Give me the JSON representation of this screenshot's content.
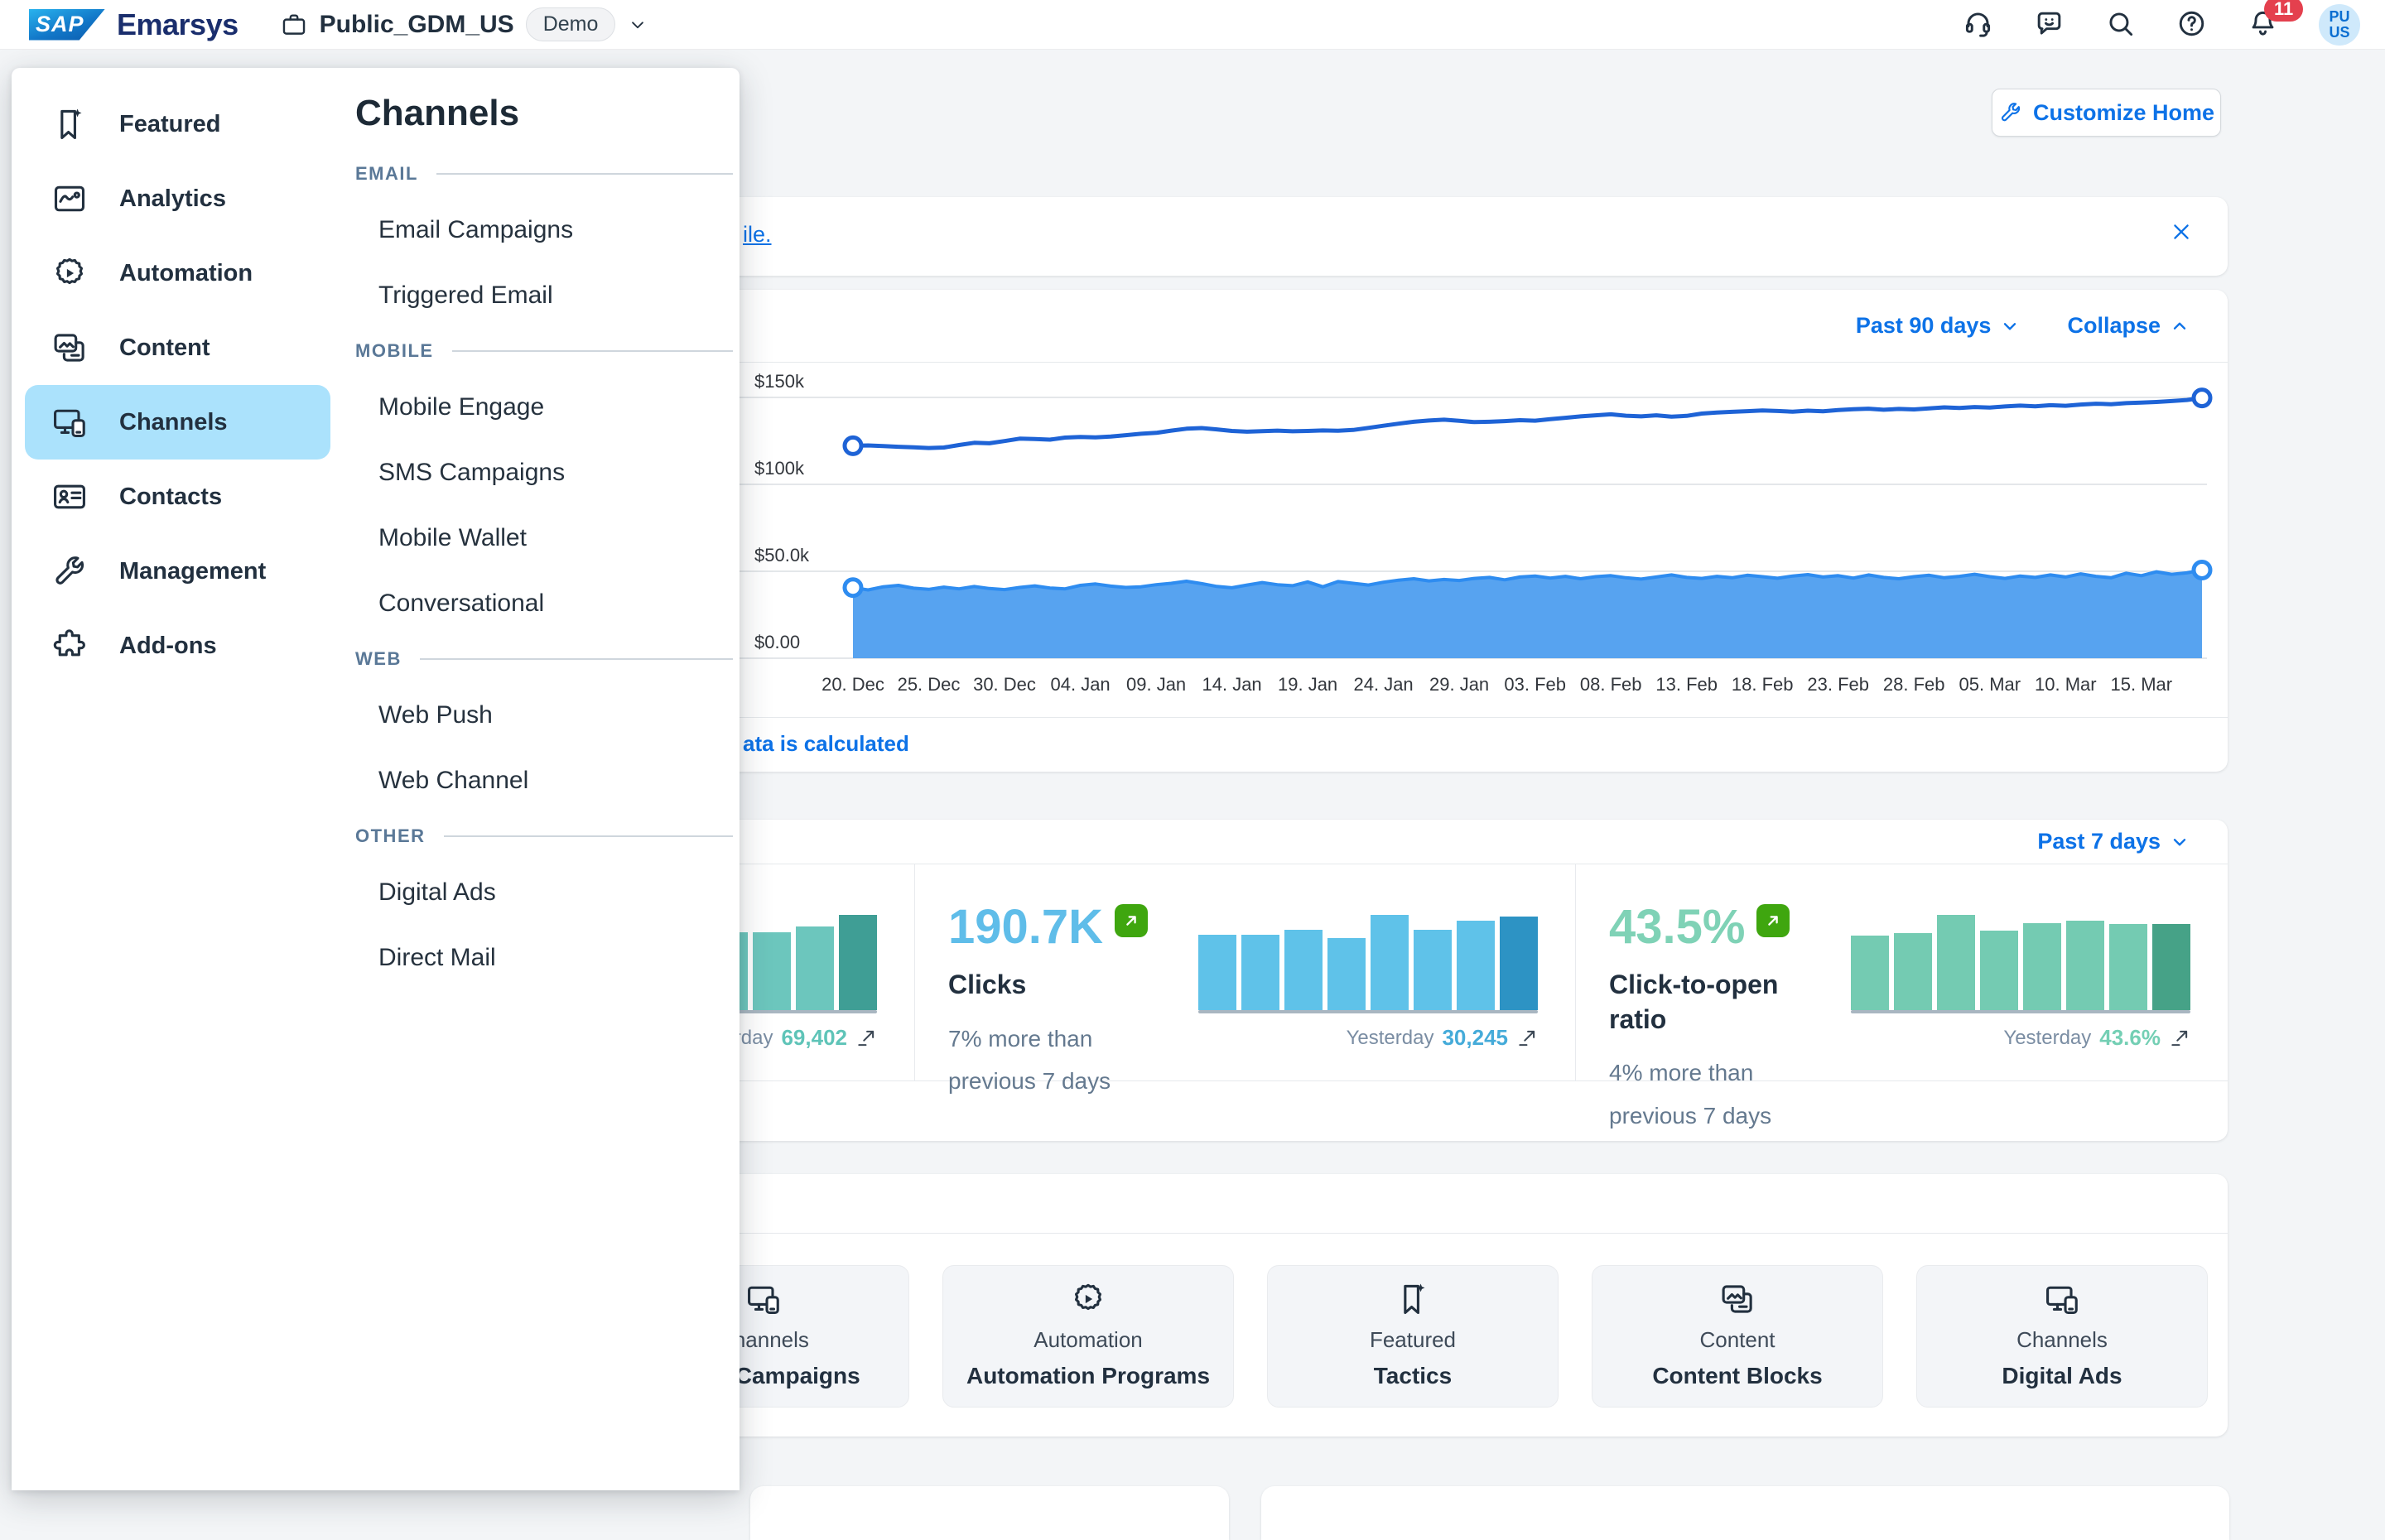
{
  "colors": {
    "accent_blue": "#0d72e7",
    "nav_highlight": "#abe2fc",
    "line_series": "#1e63d6",
    "area_series": "#57a3f0",
    "badge_green": "#3fa60f",
    "alert_red": "#e4404e"
  },
  "topbar": {
    "brand_sap": "SAP",
    "brand_product": "Emarsys",
    "account_name": "Public_GDM_US",
    "account_badge": "Demo",
    "notification_count": "11",
    "avatar_line1": "PU",
    "avatar_line2": "US"
  },
  "sidebar": {
    "items": [
      {
        "label": "Featured",
        "icon": "featured",
        "active": false
      },
      {
        "label": "Analytics",
        "icon": "analytics",
        "active": false
      },
      {
        "label": "Automation",
        "icon": "automation",
        "active": false
      },
      {
        "label": "Content",
        "icon": "content",
        "active": false
      },
      {
        "label": "Channels",
        "icon": "channels",
        "active": true
      },
      {
        "label": "Contacts",
        "icon": "contacts",
        "active": false
      },
      {
        "label": "Management",
        "icon": "management",
        "active": false
      },
      {
        "label": "Add-ons",
        "icon": "addons",
        "active": false
      }
    ]
  },
  "flyout": {
    "title": "Channels",
    "sections": [
      {
        "label": "EMAIL",
        "items": [
          "Email Campaigns",
          "Triggered Email"
        ]
      },
      {
        "label": "MOBILE",
        "items": [
          "Mobile Engage",
          "SMS Campaigns",
          "Mobile Wallet",
          "Conversational"
        ]
      },
      {
        "label": "WEB",
        "items": [
          "Web Push",
          "Web Channel"
        ]
      },
      {
        "label": "OTHER",
        "items": [
          "Digital Ads",
          "Direct Mail"
        ]
      }
    ]
  },
  "page": {
    "customize_button": "Customize Home"
  },
  "banner": {
    "visible_link_fragment": "ile."
  },
  "revenue_card": {
    "range_label": "Past 90 days",
    "collapse_label": "Collapse",
    "footer_link_fragment": "ata is calculated"
  },
  "kpi_card": {
    "range_label": "Past 7 days",
    "tiles": [
      {
        "value": "",
        "label": "",
        "delta_line1": "",
        "delta_line2": "",
        "yesterday_label": "Yesterday",
        "yesterday_value": "69,402",
        "value_color": "#5fc4b8",
        "yesterday_color": "#5fc4b8",
        "bar_color": "#6cc6bd",
        "bar_color_last": "#3f9e95"
      },
      {
        "value": "190.7K",
        "label": "Clicks",
        "delta_line1": "7% more than",
        "delta_line2": "previous 7 days",
        "yesterday_label": "Yesterday",
        "yesterday_value": "30,245",
        "value_color": "#5fbde9",
        "yesterday_color": "#45abd9",
        "bar_color": "#5fc2e9",
        "bar_color_last": "#2d93c4"
      },
      {
        "value": "43.5%",
        "label": "Click-to-open ratio",
        "delta_line1": "4% more than",
        "delta_line2": "previous 7 days",
        "yesterday_label": "Yesterday",
        "yesterday_value": "43.6%",
        "value_color": "#7fd2b6",
        "yesterday_color": "#74cfb4",
        "bar_color": "#74cbb2",
        "bar_color_last": "#46a287"
      }
    ]
  },
  "quick_links": {
    "tiles": [
      {
        "category": "Channels",
        "name": "Email Campaigns",
        "icon": "channels"
      },
      {
        "category": "Automation",
        "name": "Automation Programs",
        "icon": "automation"
      },
      {
        "category": "Featured",
        "name": "Tactics",
        "icon": "featured"
      },
      {
        "category": "Content",
        "name": "Content Blocks",
        "icon": "content"
      },
      {
        "category": "Channels",
        "name": "Digital Ads",
        "icon": "channels"
      }
    ]
  },
  "chart_data": {
    "revenue_trend": {
      "type": "area",
      "x_tick_labels": [
        "20. Dec",
        "25. Dec",
        "30. Dec",
        "04. Jan",
        "09. Jan",
        "14. Jan",
        "19. Jan",
        "24. Jan",
        "29. Jan",
        "03. Feb",
        "08. Feb",
        "13. Feb",
        "18. Feb",
        "23. Feb",
        "28. Feb",
        "05. Mar",
        "10. Mar",
        "15. Mar"
      ],
      "y_tick_labels": [
        "$0.00",
        "$50.0k",
        "$100k",
        "$150k"
      ],
      "y_tick_values_k": [
        0,
        50,
        100,
        150
      ],
      "ylim_k": [
        0,
        157
      ],
      "grid": true,
      "legend": "none",
      "series": [
        {
          "name": "upper-line",
          "style": "line",
          "color": "#1e63d6",
          "values_k": [
            122.2,
            122.4,
            122.0,
            121.6,
            121.3,
            120.9,
            121.2,
            122.6,
            123.9,
            123.6,
            124.9,
            126.3,
            126.1,
            125.7,
            126.9,
            127.3,
            127.0,
            127.5,
            128.3,
            129.1,
            129.6,
            130.9,
            132.0,
            132.4,
            131.6,
            130.7,
            130.3,
            130.6,
            130.9,
            130.5,
            130.7,
            131.0,
            130.8,
            131.3,
            132.5,
            133.7,
            134.9,
            136.0,
            136.7,
            137.2,
            136.5,
            135.8,
            136.0,
            136.4,
            136.9,
            136.6,
            137.5,
            138.3,
            139.1,
            139.7,
            140.3,
            139.5,
            139.1,
            139.7,
            138.9,
            139.4,
            140.7,
            141.3,
            141.7,
            142.1,
            142.5,
            142.2,
            141.8,
            142.4,
            142.0,
            142.7,
            143.2,
            143.5,
            142.9,
            143.4,
            143.1,
            143.7,
            144.3,
            143.9,
            144.5,
            144.2,
            144.8,
            145.3,
            144.9,
            145.5,
            145.2,
            145.9,
            146.4,
            146.1,
            146.7,
            147.0,
            147.4,
            147.9,
            148.5,
            149.7
          ]
        },
        {
          "name": "lower-area",
          "style": "area",
          "color": "#57a3f0",
          "edge_color": "#2e8cf0",
          "values_k": [
            40.6,
            39.3,
            41.1,
            41.9,
            40.3,
            39.6,
            40.9,
            39.9,
            41.3,
            40.1,
            39.5,
            40.7,
            41.6,
            40.4,
            39.9,
            41.9,
            42.7,
            41.5,
            40.7,
            41.1,
            42.3,
            43.1,
            44.3,
            42.9,
            41.3,
            40.5,
            42.1,
            43.5,
            42.3,
            41.7,
            43.9,
            41.1,
            44.1,
            43.1,
            42.1,
            43.7,
            44.9,
            45.7,
            44.5,
            45.3,
            44.7,
            45.9,
            46.5,
            45.1,
            46.7,
            47.3,
            46.1,
            47.1,
            45.7,
            46.9,
            47.5,
            46.3,
            45.5,
            46.7,
            47.9,
            46.5,
            45.9,
            47.1,
            46.3,
            47.7,
            46.9,
            46.0,
            47.3,
            48.1,
            46.7,
            47.5,
            46.1,
            47.9,
            46.5,
            45.7,
            46.9,
            47.7,
            46.3,
            47.1,
            48.3,
            46.9,
            45.9,
            47.3,
            46.5,
            47.9,
            46.7,
            48.5,
            47.1,
            46.3,
            48.9,
            47.5,
            49.7,
            48.3,
            49.1,
            50.7
          ]
        }
      ]
    },
    "kpi_sparkbars": [
      {
        "name": "hidden-metric",
        "type": "bar",
        "yesterday": 69402,
        "values": [
          54100,
          55500,
          58300,
          54800,
          56900,
          56900,
          61100,
          69402
        ]
      },
      {
        "name": "Clicks",
        "type": "bar",
        "yesterday": 30245,
        "values": [
          24400,
          24400,
          26000,
          23300,
          30700,
          26000,
          28700,
          30245
        ]
      },
      {
        "name": "Click-to-open ratio",
        "type": "bar",
        "yesterday": 43.6,
        "values": [
          37.8,
          39.3,
          48.4,
          40.2,
          44.2,
          45.4,
          43.7,
          43.6
        ]
      }
    ]
  }
}
